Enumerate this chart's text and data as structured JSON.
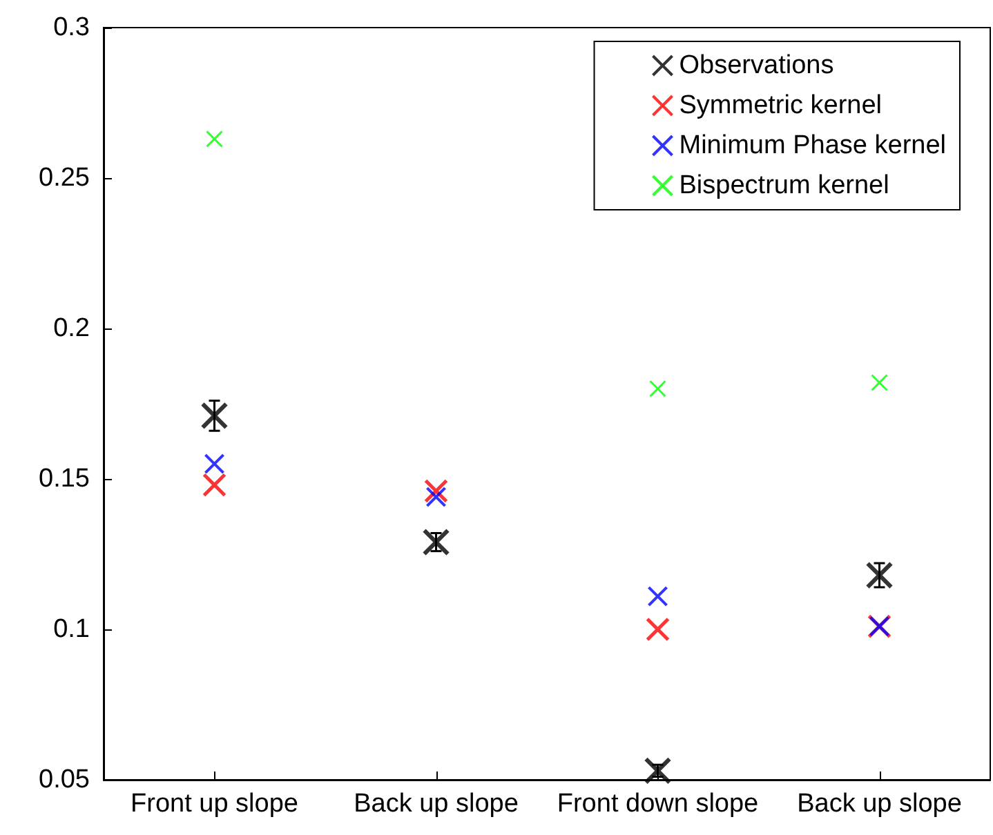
{
  "chart_data": {
    "type": "scatter",
    "categories": [
      "Front up slope",
      "Back up slope",
      "Front down slope",
      "Back up slope"
    ],
    "series": [
      {
        "name": "Observations",
        "color": "#000000",
        "values": [
          0.171,
          0.129,
          0.053,
          0.118
        ],
        "errors": [
          0.005,
          0.003,
          0.002,
          0.004
        ]
      },
      {
        "name": "Symmetric kernel",
        "color": "#ff0000",
        "values": [
          0.148,
          0.146,
          0.1,
          0.101
        ]
      },
      {
        "name": "Minimum Phase kernel",
        "color": "#0000ff",
        "values": [
          0.155,
          0.144,
          0.111,
          0.101
        ]
      },
      {
        "name": "Bispectrum kernel",
        "color": "#00ff00",
        "values": [
          0.263,
          null,
          0.18,
          0.182
        ]
      }
    ],
    "ylim": [
      0.05,
      0.3
    ],
    "yticks": [
      0.05,
      0.1,
      0.15,
      0.2,
      0.25,
      0.3
    ],
    "grid": false,
    "legend": "top right",
    "marker": "cross"
  }
}
